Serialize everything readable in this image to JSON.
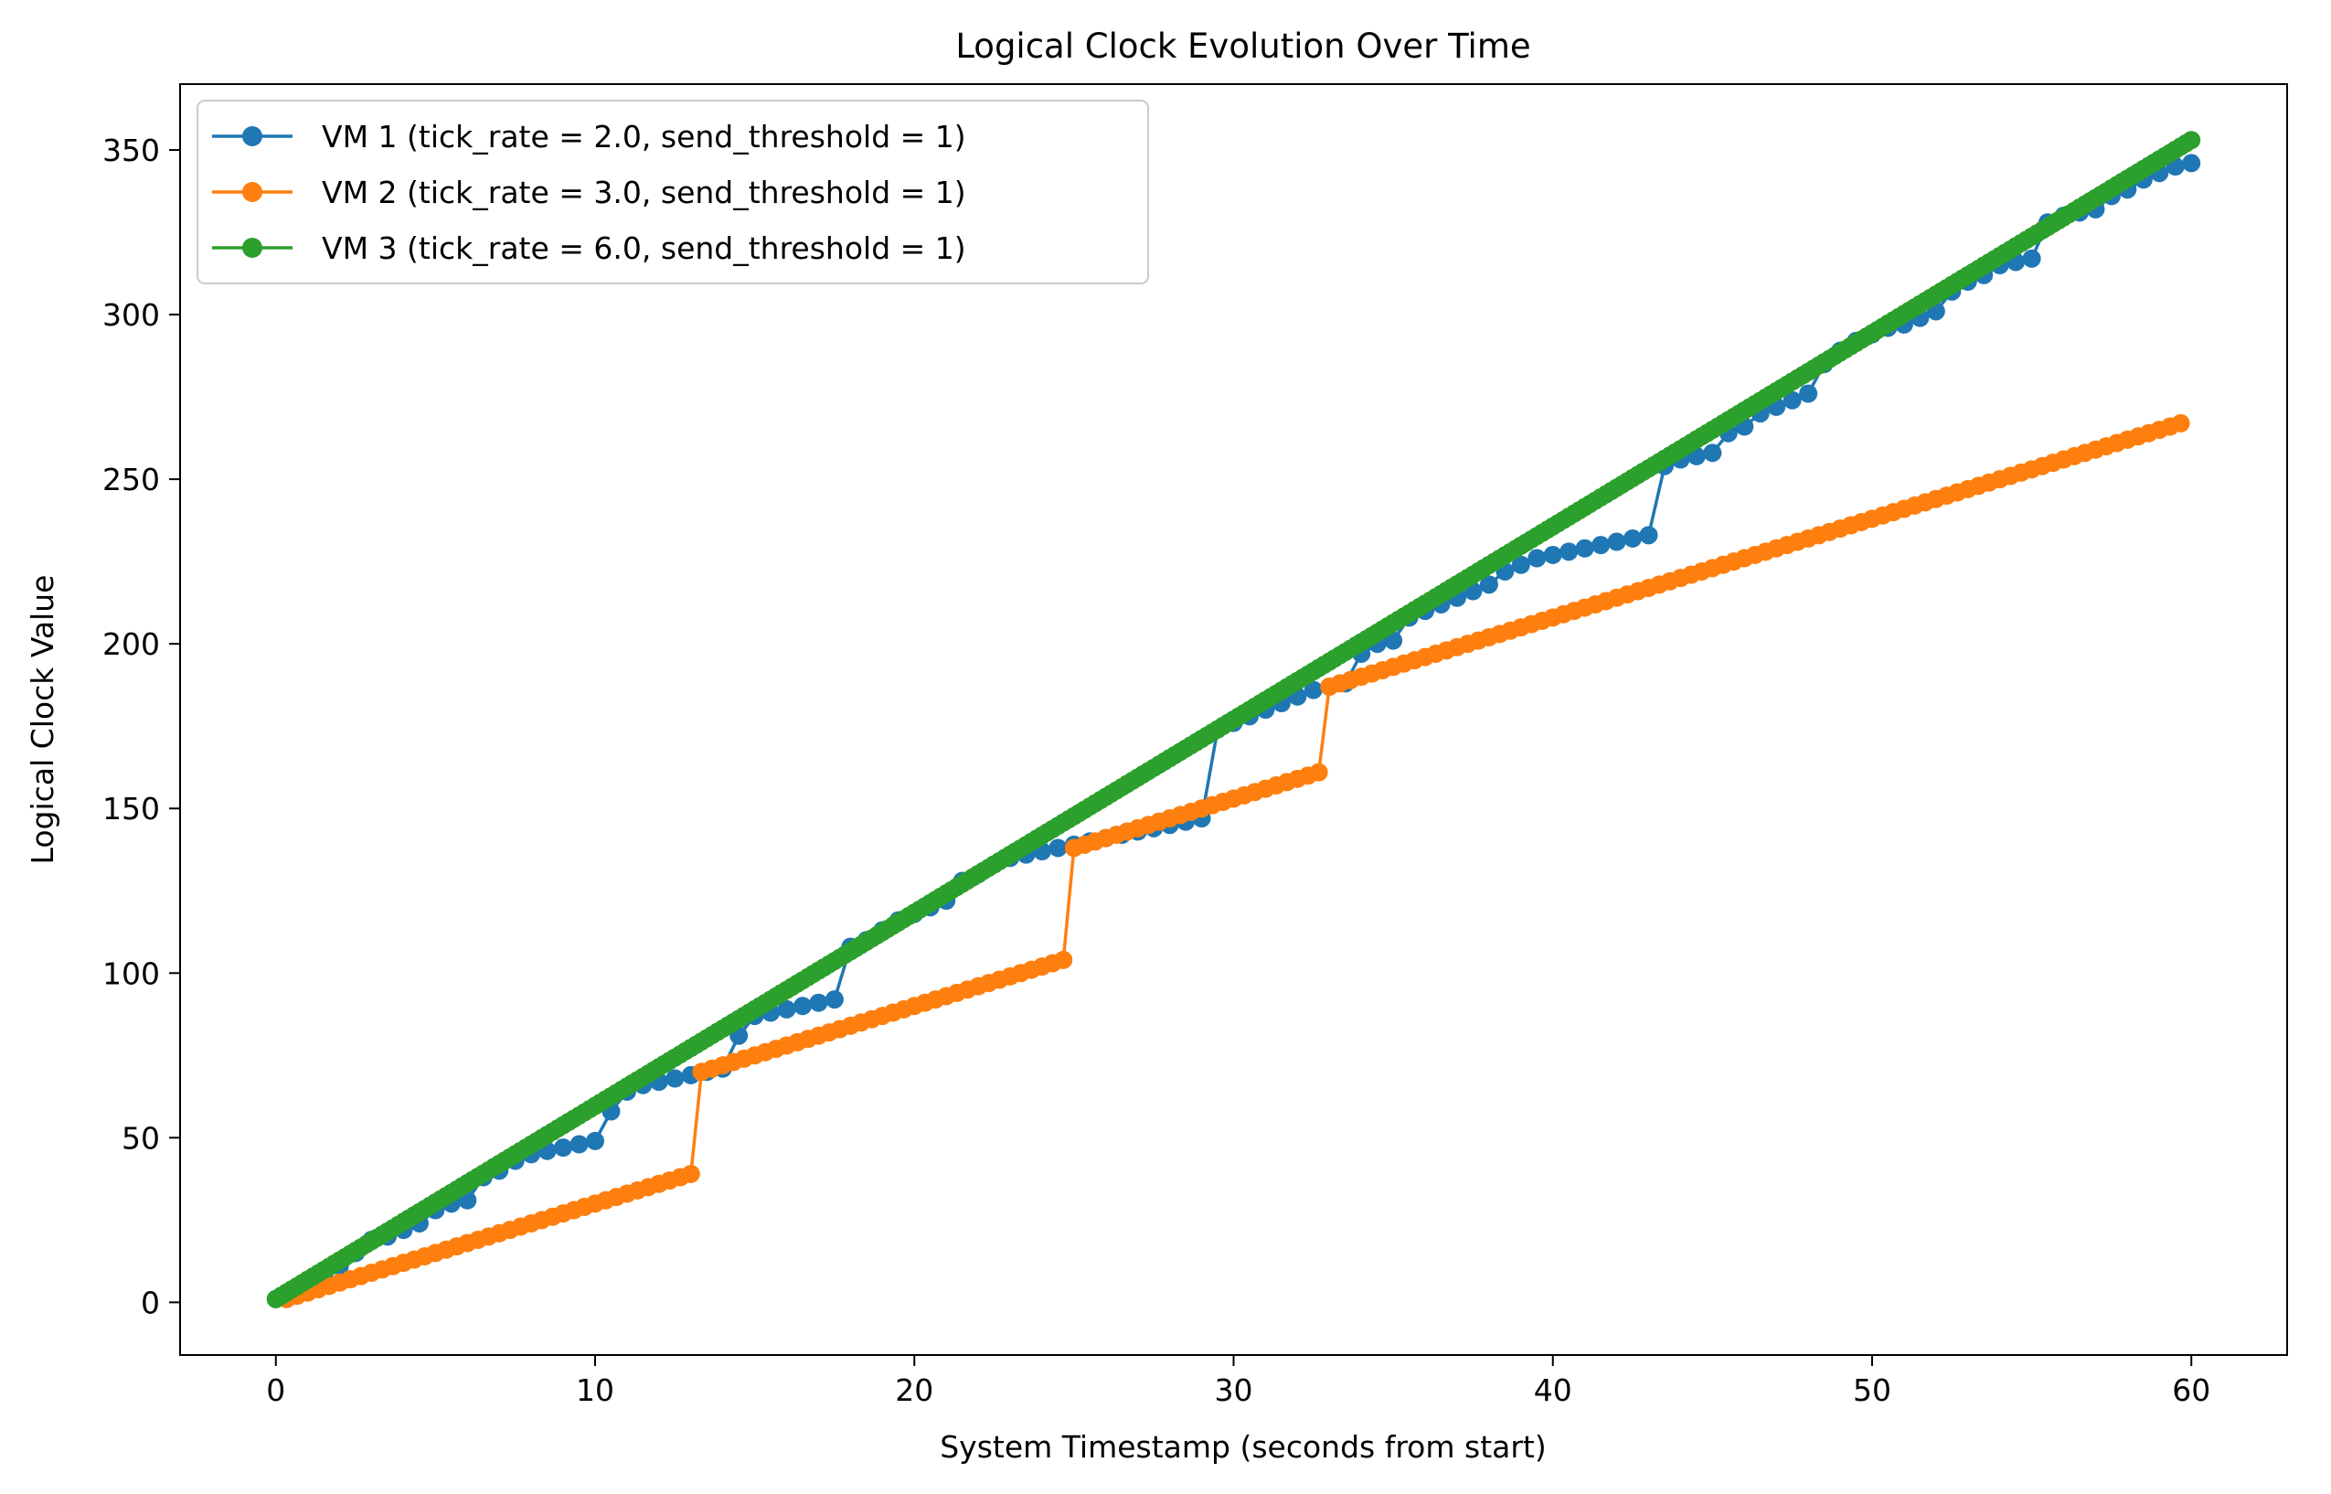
{
  "chart_data": {
    "type": "line",
    "title": "Logical Clock Evolution Over Time",
    "xlabel": "System Timestamp (seconds from start)",
    "ylabel": "Logical Clock Value",
    "xlim": [
      -3,
      63
    ],
    "ylim": [
      -16,
      370
    ],
    "xticks": [
      0,
      10,
      20,
      30,
      40,
      50,
      60
    ],
    "yticks": [
      0,
      50,
      100,
      150,
      200,
      250,
      300,
      350
    ],
    "grid": false,
    "legend_position": "top-left",
    "series": [
      {
        "name": "VM 1 (tick_rate = 2.0, send_threshold = 1)",
        "color": "#1f77b4",
        "marker": "circle",
        "points": [
          [
            0,
            1
          ],
          [
            0.5,
            2
          ],
          [
            1,
            6
          ],
          [
            1.5,
            8
          ],
          [
            2,
            11
          ],
          [
            2.5,
            15
          ],
          [
            3,
            19
          ],
          [
            3.5,
            20
          ],
          [
            4,
            22
          ],
          [
            4.5,
            24
          ],
          [
            5,
            28
          ],
          [
            5.5,
            30
          ],
          [
            6,
            31
          ],
          [
            6.5,
            38
          ],
          [
            7,
            40
          ],
          [
            7.5,
            43
          ],
          [
            8,
            45
          ],
          [
            8.5,
            46
          ],
          [
            9,
            47
          ],
          [
            9.5,
            48
          ],
          [
            10,
            49
          ],
          [
            10.5,
            58
          ],
          [
            11,
            64
          ],
          [
            11.5,
            66
          ],
          [
            12,
            67
          ],
          [
            12.5,
            68
          ],
          [
            13,
            69
          ],
          [
            13.5,
            70
          ],
          [
            14,
            71
          ],
          [
            14.5,
            81
          ],
          [
            15,
            87
          ],
          [
            15.5,
            88
          ],
          [
            16,
            89
          ],
          [
            16.5,
            90
          ],
          [
            17,
            91
          ],
          [
            17.5,
            92
          ],
          [
            18,
            108
          ],
          [
            18.5,
            110
          ],
          [
            19,
            113
          ],
          [
            19.5,
            116
          ],
          [
            20,
            118
          ],
          [
            20.5,
            120
          ],
          [
            21,
            122
          ],
          [
            21.5,
            128
          ],
          [
            22,
            130
          ],
          [
            22.5,
            133
          ],
          [
            23,
            135
          ],
          [
            23.5,
            136
          ],
          [
            24,
            137
          ],
          [
            24.5,
            138
          ],
          [
            25,
            139
          ],
          [
            25.5,
            140
          ],
          [
            26,
            141
          ],
          [
            26.5,
            142
          ],
          [
            27,
            143
          ],
          [
            27.5,
            144
          ],
          [
            28,
            145
          ],
          [
            28.5,
            146
          ],
          [
            29,
            147
          ],
          [
            29.5,
            174
          ],
          [
            30,
            176
          ],
          [
            30.5,
            178
          ],
          [
            31,
            180
          ],
          [
            31.5,
            182
          ],
          [
            32,
            184
          ],
          [
            32.5,
            186
          ],
          [
            33,
            187
          ],
          [
            33.5,
            188
          ],
          [
            34,
            197
          ],
          [
            34.5,
            200
          ],
          [
            35,
            201
          ],
          [
            35.5,
            208
          ],
          [
            36,
            210
          ],
          [
            36.5,
            212
          ],
          [
            37,
            214
          ],
          [
            37.5,
            216
          ],
          [
            38,
            218
          ],
          [
            38.5,
            222
          ],
          [
            39,
            224
          ],
          [
            39.5,
            226
          ],
          [
            40,
            227
          ],
          [
            40.5,
            228
          ],
          [
            41,
            229
          ],
          [
            41.5,
            230
          ],
          [
            42,
            231
          ],
          [
            42.5,
            232
          ],
          [
            43,
            233
          ],
          [
            43.5,
            254
          ],
          [
            44,
            256
          ],
          [
            44.5,
            257
          ],
          [
            45,
            258
          ],
          [
            45.5,
            264
          ],
          [
            46,
            266
          ],
          [
            46.5,
            270
          ],
          [
            47,
            272
          ],
          [
            47.5,
            274
          ],
          [
            48,
            276
          ],
          [
            48.5,
            285
          ],
          [
            49,
            289
          ],
          [
            49.5,
            292
          ],
          [
            50,
            294
          ],
          [
            50.5,
            296
          ],
          [
            51,
            297
          ],
          [
            51.5,
            299
          ],
          [
            52,
            301
          ],
          [
            52.5,
            307
          ],
          [
            53,
            310
          ],
          [
            53.5,
            312
          ],
          [
            54,
            315
          ],
          [
            54.5,
            316
          ],
          [
            55,
            317
          ],
          [
            55.5,
            328
          ],
          [
            56,
            330
          ],
          [
            56.5,
            331
          ],
          [
            57,
            332
          ],
          [
            57.5,
            336
          ],
          [
            58,
            338
          ],
          [
            58.5,
            341
          ],
          [
            59,
            343
          ],
          [
            59.5,
            345
          ],
          [
            60,
            346
          ]
        ]
      },
      {
        "name": "VM 2 (tick_rate = 3.0, send_threshold = 1)",
        "color": "#ff7f0e",
        "marker": "circle",
        "points": [
          [
            0.333,
            1
          ],
          [
            0.667,
            2
          ],
          [
            1,
            3
          ],
          [
            1.333,
            4
          ],
          [
            1.667,
            5
          ],
          [
            2,
            6
          ],
          [
            2.333,
            7
          ],
          [
            2.667,
            8
          ],
          [
            3,
            9
          ],
          [
            3.333,
            10
          ],
          [
            3.667,
            11
          ],
          [
            4,
            12
          ],
          [
            4.333,
            13
          ],
          [
            4.667,
            14
          ],
          [
            5,
            15
          ],
          [
            5.333,
            16
          ],
          [
            5.667,
            17
          ],
          [
            6,
            18
          ],
          [
            6.333,
            19
          ],
          [
            6.667,
            20
          ],
          [
            7,
            21
          ],
          [
            7.333,
            22
          ],
          [
            7.667,
            23
          ],
          [
            8,
            24
          ],
          [
            8.333,
            25
          ],
          [
            8.667,
            26
          ],
          [
            9,
            27
          ],
          [
            9.333,
            28
          ],
          [
            9.667,
            29
          ],
          [
            10,
            30
          ],
          [
            10.333,
            31
          ],
          [
            10.667,
            32
          ],
          [
            11,
            33
          ],
          [
            11.333,
            34
          ],
          [
            11.667,
            35
          ],
          [
            12,
            36
          ],
          [
            12.333,
            37
          ],
          [
            12.667,
            38
          ],
          [
            13,
            39
          ],
          [
            13.333,
            70
          ],
          [
            13.667,
            71
          ],
          [
            14,
            72
          ],
          [
            14.333,
            73
          ],
          [
            14.667,
            74
          ],
          [
            15,
            75
          ],
          [
            15.333,
            76
          ],
          [
            15.667,
            77
          ],
          [
            16,
            78
          ],
          [
            16.333,
            79
          ],
          [
            16.667,
            80
          ],
          [
            17,
            81
          ],
          [
            17.333,
            82
          ],
          [
            17.667,
            83
          ],
          [
            18,
            84
          ],
          [
            18.333,
            85
          ],
          [
            18.667,
            86
          ],
          [
            19,
            87
          ],
          [
            19.333,
            88
          ],
          [
            19.667,
            89
          ],
          [
            20,
            90
          ],
          [
            20.333,
            91
          ],
          [
            20.667,
            92
          ],
          [
            21,
            93
          ],
          [
            21.333,
            94
          ],
          [
            21.667,
            95
          ],
          [
            22,
            96
          ],
          [
            22.333,
            97
          ],
          [
            22.667,
            98
          ],
          [
            23,
            99
          ],
          [
            23.333,
            100
          ],
          [
            23.667,
            101
          ],
          [
            24,
            102
          ],
          [
            24.333,
            103
          ],
          [
            24.667,
            104
          ],
          [
            25,
            138
          ],
          [
            25.333,
            139
          ],
          [
            25.667,
            140
          ],
          [
            26,
            141
          ],
          [
            26.333,
            142
          ],
          [
            26.667,
            143
          ],
          [
            27,
            144
          ],
          [
            27.333,
            145
          ],
          [
            27.667,
            146
          ],
          [
            28,
            147
          ],
          [
            28.333,
            148
          ],
          [
            28.667,
            149
          ],
          [
            29,
            150
          ],
          [
            29.333,
            151
          ],
          [
            29.667,
            152
          ],
          [
            30,
            153
          ],
          [
            30.333,
            154
          ],
          [
            30.667,
            155
          ],
          [
            31,
            156
          ],
          [
            31.333,
            157
          ],
          [
            31.667,
            158
          ],
          [
            32,
            159
          ],
          [
            32.333,
            160
          ],
          [
            32.667,
            161
          ],
          [
            33,
            187
          ],
          [
            33.333,
            188
          ],
          [
            33.667,
            189
          ],
          [
            34,
            190
          ],
          [
            34.333,
            191
          ],
          [
            34.667,
            192
          ],
          [
            35,
            193
          ],
          [
            35.333,
            194
          ],
          [
            35.667,
            195
          ],
          [
            36,
            196
          ],
          [
            36.333,
            197
          ],
          [
            36.667,
            198
          ],
          [
            37,
            199
          ],
          [
            37.333,
            200
          ],
          [
            37.667,
            201
          ],
          [
            38,
            202
          ],
          [
            38.333,
            203
          ],
          [
            38.667,
            204
          ],
          [
            39,
            205
          ],
          [
            39.333,
            206
          ],
          [
            39.667,
            207
          ],
          [
            40,
            208
          ],
          [
            40.333,
            209
          ],
          [
            40.667,
            210
          ],
          [
            41,
            211
          ],
          [
            41.333,
            212
          ],
          [
            41.667,
            213
          ],
          [
            42,
            214
          ],
          [
            42.333,
            215
          ],
          [
            42.667,
            216
          ],
          [
            43,
            217
          ],
          [
            43.333,
            218
          ],
          [
            43.667,
            219
          ],
          [
            44,
            220
          ],
          [
            44.333,
            221
          ],
          [
            44.667,
            222
          ],
          [
            45,
            223
          ],
          [
            45.333,
            224
          ],
          [
            45.667,
            225
          ],
          [
            46,
            226
          ],
          [
            46.333,
            227
          ],
          [
            46.667,
            228
          ],
          [
            47,
            229
          ],
          [
            47.333,
            230
          ],
          [
            47.667,
            231
          ],
          [
            48,
            232
          ],
          [
            48.333,
            233
          ],
          [
            48.667,
            234
          ],
          [
            49,
            235
          ],
          [
            49.333,
            236
          ],
          [
            49.667,
            237
          ],
          [
            50,
            238
          ],
          [
            50.333,
            239
          ],
          [
            50.667,
            240
          ],
          [
            51,
            241
          ],
          [
            51.333,
            242
          ],
          [
            51.667,
            243
          ],
          [
            52,
            244
          ],
          [
            52.333,
            245
          ],
          [
            52.667,
            246
          ],
          [
            53,
            247
          ],
          [
            53.333,
            248
          ],
          [
            53.667,
            249
          ],
          [
            54,
            250
          ],
          [
            54.333,
            251
          ],
          [
            54.667,
            252
          ],
          [
            55,
            253
          ],
          [
            55.333,
            254
          ],
          [
            55.667,
            255
          ],
          [
            56,
            256
          ],
          [
            56.333,
            257
          ],
          [
            56.667,
            258
          ],
          [
            57,
            259
          ],
          [
            57.333,
            260
          ],
          [
            57.667,
            261
          ],
          [
            58,
            262
          ],
          [
            58.333,
            263
          ],
          [
            58.667,
            264
          ],
          [
            59,
            265
          ],
          [
            59.333,
            266
          ],
          [
            59.667,
            267
          ]
        ]
      },
      {
        "name": "VM 3 (tick_rate = 6.0, send_threshold = 1)",
        "color": "#2ca02c",
        "marker": "circle",
        "x_start": 0,
        "x_end": 60,
        "y_start": 1,
        "y_end": 353,
        "count": 361
      }
    ]
  }
}
